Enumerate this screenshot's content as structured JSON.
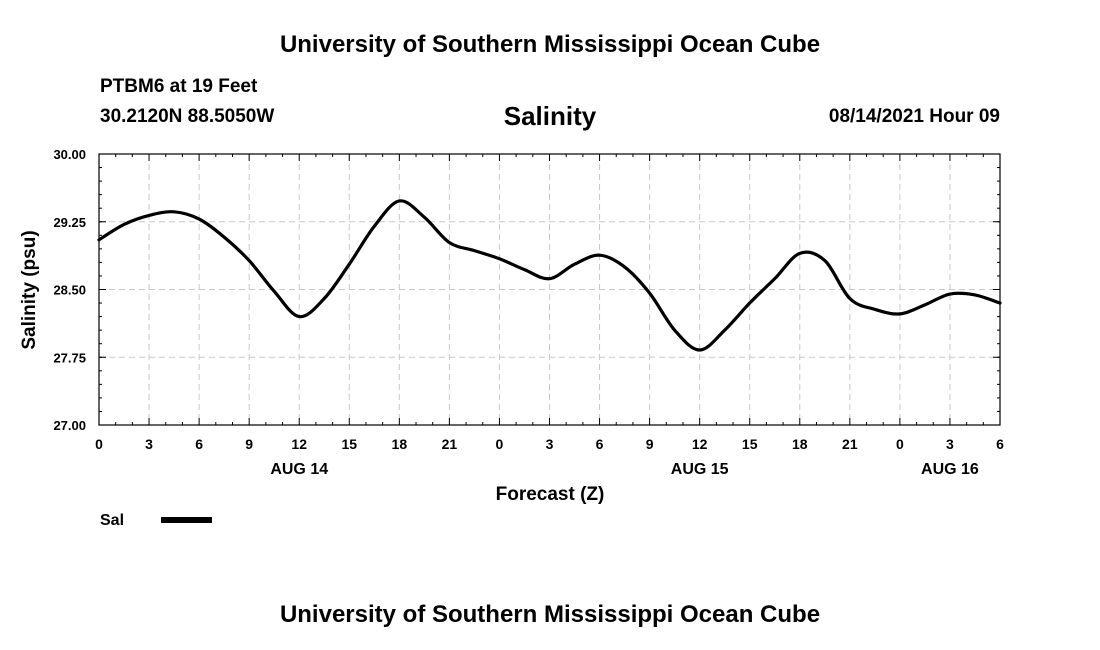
{
  "header": {
    "title": "University of Southern Mississippi Ocean Cube",
    "station": "PTBM6 at 19 Feet",
    "coords": "30.2120N  88.5050W",
    "chart_title": "Salinity",
    "datetime": "08/14/2021 Hour 09"
  },
  "footer": {
    "title": "University of Southern Mississippi Ocean Cube"
  },
  "colors": {
    "line": "#000000",
    "grid": "#c8c8c8",
    "background": "#ffffff"
  },
  "chart_data": {
    "type": "line",
    "title": "Salinity",
    "xlabel": "Forecast (Z)",
    "ylabel": "Salinity (psu)",
    "xlim": [
      0,
      54
    ],
    "ylim": [
      27.0,
      30.0
    ],
    "x_ticks": [
      0,
      3,
      6,
      9,
      12,
      15,
      18,
      21,
      24,
      27,
      30,
      33,
      36,
      39,
      42,
      45,
      48,
      51,
      54
    ],
    "x_tick_labels": [
      "0",
      "3",
      "6",
      "9",
      "12",
      "15",
      "18",
      "21",
      "0",
      "3",
      "6",
      "9",
      "12",
      "15",
      "18",
      "21",
      "0",
      "3",
      "6"
    ],
    "y_ticks": [
      27.0,
      27.75,
      28.5,
      29.25,
      30.0
    ],
    "y_tick_labels": [
      "27.00",
      "27.75",
      "28.50",
      "29.25",
      "30.00"
    ],
    "date_labels": [
      {
        "x": 12,
        "label": "AUG 14"
      },
      {
        "x": 36,
        "label": "AUG 15"
      },
      {
        "x": 51,
        "label": "AUG 16"
      }
    ],
    "grid": true,
    "legend": {
      "position": "bottom-left",
      "entries": [
        "Sal"
      ]
    },
    "series": [
      {
        "name": "Sal",
        "x": [
          0,
          1.5,
          3,
          4.5,
          6,
          7.5,
          9,
          10.5,
          12,
          13.5,
          15,
          16.5,
          18,
          19.5,
          21,
          22.5,
          24,
          25.5,
          27,
          28.5,
          30,
          31.5,
          33,
          34.5,
          36,
          37.5,
          39,
          40.5,
          42,
          43.5,
          45,
          46.5,
          48,
          49.5,
          51,
          52.5,
          54
        ],
        "values": [
          29.05,
          29.22,
          29.32,
          29.36,
          29.28,
          29.08,
          28.82,
          28.48,
          28.2,
          28.4,
          28.78,
          29.2,
          29.48,
          29.3,
          29.02,
          28.93,
          28.84,
          28.72,
          28.62,
          28.78,
          28.88,
          28.75,
          28.46,
          28.05,
          27.83,
          28.05,
          28.35,
          28.62,
          28.9,
          28.82,
          28.4,
          28.28,
          28.23,
          28.33,
          28.45,
          28.44,
          28.35
        ]
      }
    ]
  }
}
